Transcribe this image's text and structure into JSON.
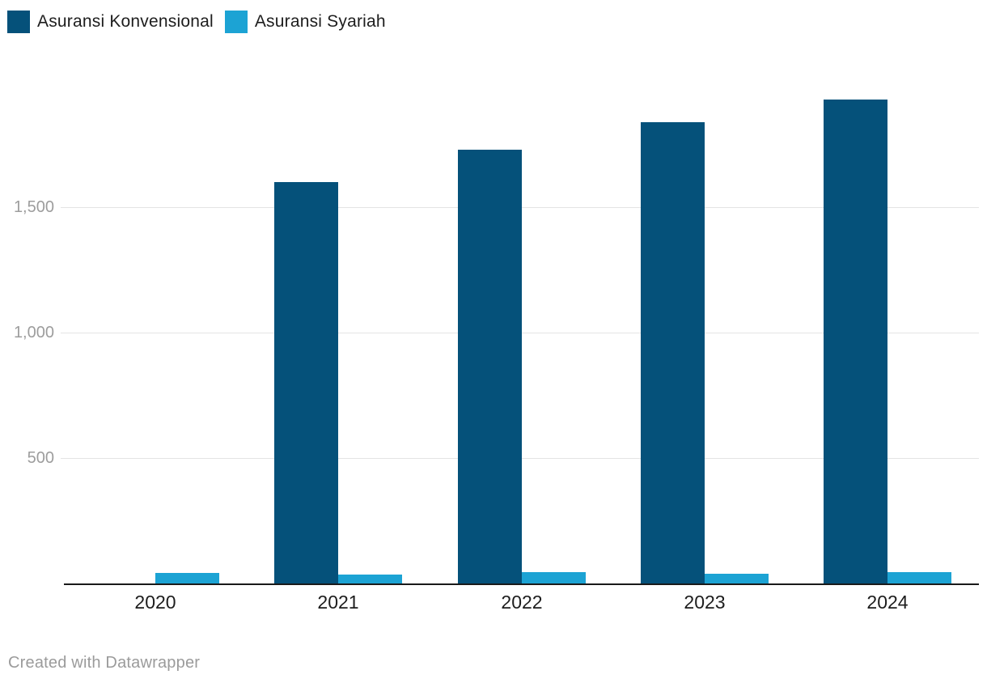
{
  "legend": {
    "items": [
      {
        "label": "Asuransi Konvensional",
        "color": "#05517a"
      },
      {
        "label": "Asuransi Syariah",
        "color": "#1ca3d4"
      }
    ]
  },
  "footer": {
    "attribution": "Created with Datawrapper"
  },
  "chart_data": {
    "type": "bar",
    "categories": [
      "2020",
      "2021",
      "2022",
      "2023",
      "2024"
    ],
    "series": [
      {
        "name": "Asuransi Konvensional",
        "color": "#05517a",
        "values": [
          0,
          1600,
          1730,
          1840,
          1930
        ]
      },
      {
        "name": "Asuransi Syariah",
        "color": "#1ca3d4",
        "values": [
          42,
          36,
          44,
          40,
          44
        ]
      }
    ],
    "title": "",
    "xlabel": "",
    "ylabel": "",
    "ylim": [
      0,
      2000
    ],
    "yticks": [
      500,
      1000,
      1500
    ],
    "ytick_labels": [
      "500",
      "1,000",
      "1,500"
    ],
    "grid": true,
    "legend_position": "top-left"
  }
}
